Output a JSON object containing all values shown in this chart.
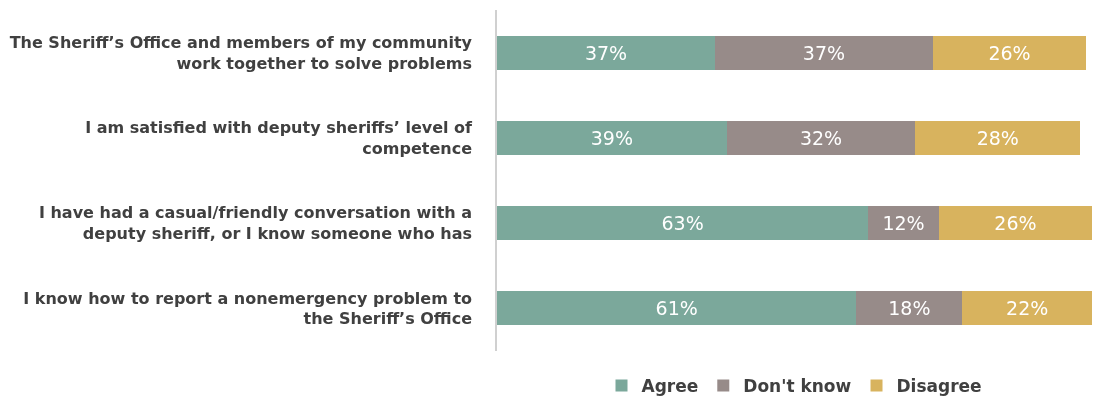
{
  "chart_data": {
    "type": "bar",
    "orientation": "horizontal",
    "stacked": true,
    "legend": "bottom",
    "categories": [
      "The Sheriff’s Office and members of my community work together to solve problems",
      "I am satisfied with deputy sheriffs’ level of competence",
      "I have had a casual/friendly conversation with a deputy sheriff, or I know someone who has",
      "I know how to report a nonemergency problem to the Sheriff’s Office"
    ],
    "series": [
      {
        "name": "Agree",
        "color": "#7ba89b",
        "values": [
          37,
          39,
          63,
          61
        ],
        "value_labels": [
          "37%",
          "39%",
          "63%",
          "61%"
        ]
      },
      {
        "name": "Don't know",
        "color": "#978b89",
        "values": [
          37,
          32,
          12,
          18
        ],
        "value_labels": [
          "37%",
          "32%",
          "12%",
          "18%"
        ]
      },
      {
        "name": "Disagree",
        "color": "#d8b35e",
        "values": [
          26,
          28,
          26,
          22
        ],
        "value_labels": [
          "26%",
          "28%",
          "26%",
          "22%"
        ]
      }
    ]
  }
}
